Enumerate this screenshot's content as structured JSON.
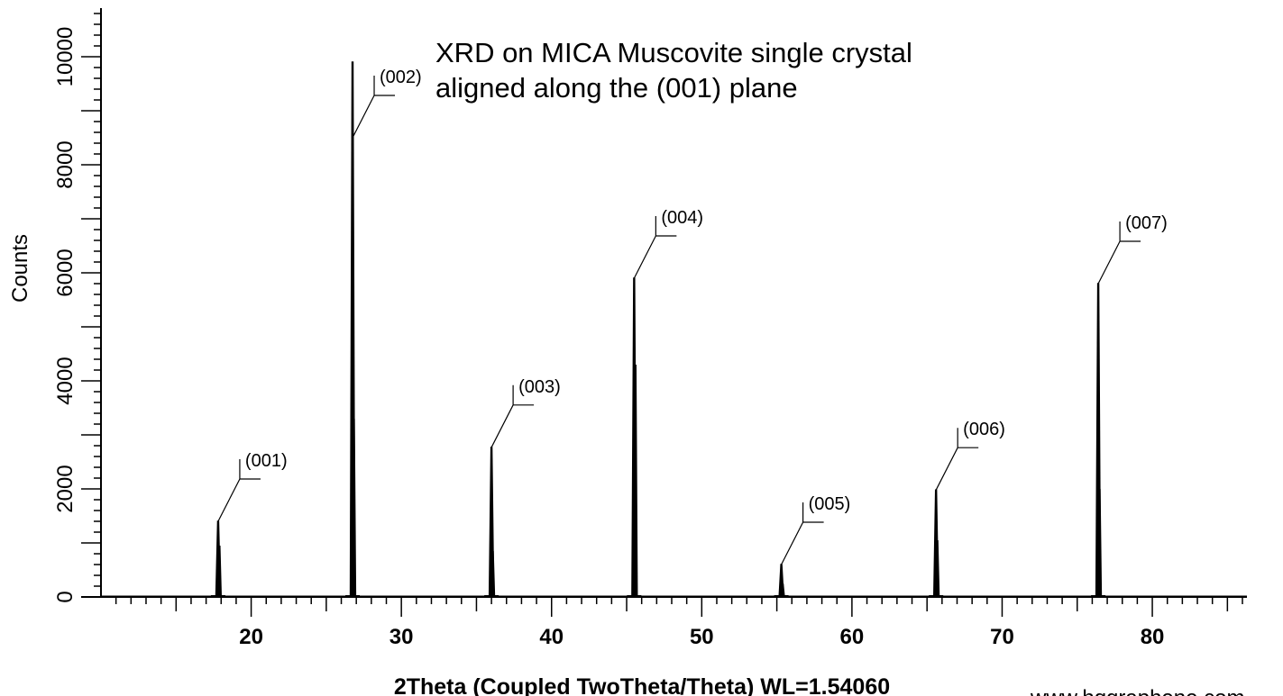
{
  "chart_data": {
    "type": "line",
    "title": "XRD on MICA Muscovite single crystal",
    "subtitle": "aligned along the (001) plane",
    "xlabel": "2Theta (Coupled TwoTheta/Theta) WL=1.54060",
    "ylabel": "Counts",
    "xlim": [
      10,
      86.3
    ],
    "ylim": [
      0,
      10900
    ],
    "xticks": [
      20,
      30,
      40,
      50,
      60,
      70,
      80
    ],
    "yticks": [
      0,
      2000,
      4000,
      6000,
      8000,
      10000
    ],
    "grid": false,
    "peaks": [
      {
        "label": "(001)",
        "x": 17.8,
        "y": 1400,
        "y2": 950
      },
      {
        "label": "(002)",
        "x": 26.75,
        "y": 9900,
        "y2": 3300
      },
      {
        "label": "(003)",
        "x": 36.0,
        "y": 2770,
        "y2": 850
      },
      {
        "label": "(004)",
        "x": 45.5,
        "y": 5900,
        "y2": 4300
      },
      {
        "label": "(005)",
        "x": 55.3,
        "y": 600,
        "y2": 250
      },
      {
        "label": "(006)",
        "x": 65.6,
        "y": 1980,
        "y2": 1050
      },
      {
        "label": "(007)",
        "x": 76.4,
        "y": 5800,
        "y2": 2000
      }
    ],
    "watermark": "www.hqgraphene.com"
  }
}
